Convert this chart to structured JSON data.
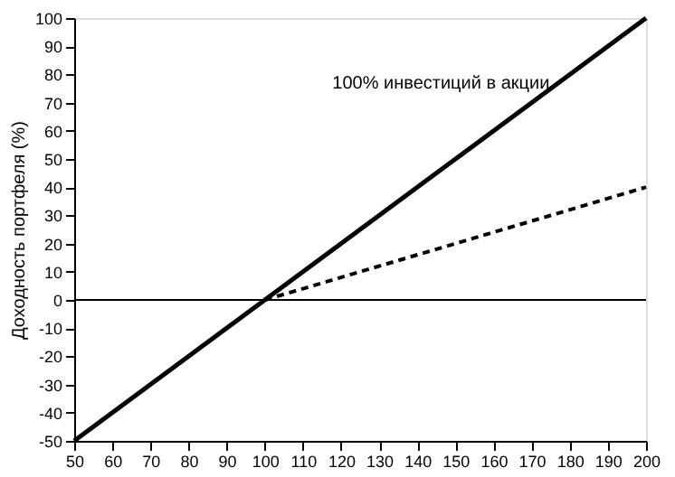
{
  "chart_data": {
    "type": "line",
    "ylabel": "Доходность портфеля (%)",
    "xlim": [
      50,
      200
    ],
    "xticks": [
      50,
      60,
      70,
      80,
      90,
      100,
      110,
      120,
      130,
      140,
      150,
      160,
      170,
      180,
      190,
      200
    ],
    "ylim": [
      -50,
      100
    ],
    "yticks": [
      -50,
      -40,
      -30,
      -20,
      -10,
      0,
      10,
      20,
      30,
      40,
      50,
      60,
      70,
      80,
      90,
      100
    ],
    "grid": false,
    "marker": "none",
    "series": [
      {
        "name": "100% инвестиций в акции",
        "color": "#000000",
        "line_style": "solid",
        "x": [
          50,
          100,
          150,
          200
        ],
        "values": [
          -50,
          0,
          50,
          100
        ]
      },
      {
        "color": "#000000",
        "line_style": "dashed",
        "x": [
          100,
          150,
          200
        ],
        "values": [
          0,
          20,
          40
        ]
      }
    ],
    "ref_lines": [
      {
        "axis": "y",
        "value": 0,
        "color": "#000000"
      }
    ]
  }
}
